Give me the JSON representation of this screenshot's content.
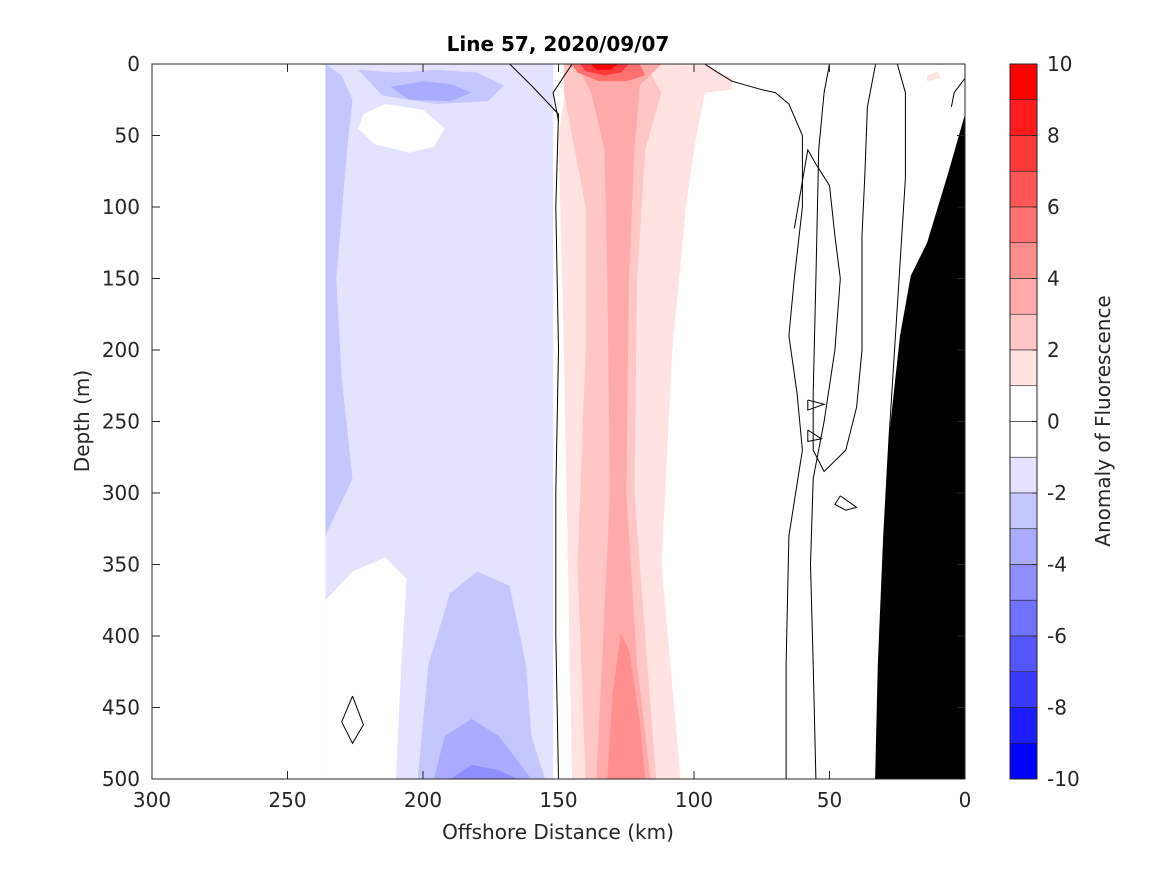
{
  "chart_data": {
    "type": "heatmap",
    "title": "Line 57, 2020/09/07",
    "xlabel": "Offshore Distance (km)",
    "ylabel": "Depth (m)",
    "colorbar_label": "Anomaly of Fluorescence",
    "xlim": [
      300,
      0
    ],
    "ylim": [
      0,
      500
    ],
    "clim": [
      -10,
      10
    ],
    "x_reversed": true,
    "y_reversed": true,
    "x_ticks": [
      300,
      250,
      200,
      150,
      100,
      50,
      0
    ],
    "y_ticks": [
      0,
      50,
      100,
      150,
      200,
      250,
      300,
      350,
      400,
      450,
      500
    ],
    "colorbar_ticks": [
      10,
      8,
      6,
      4,
      2,
      0,
      -2,
      -4,
      -6,
      -8,
      -10
    ],
    "colorbar_levels": [
      {
        "from": 9,
        "to": 10,
        "color": "#ff0000"
      },
      {
        "from": 8,
        "to": 9,
        "color": "#ff1c1c"
      },
      {
        "from": 7,
        "to": 8,
        "color": "#ff3939"
      },
      {
        "from": 6,
        "to": 7,
        "color": "#ff5555"
      },
      {
        "from": 5,
        "to": 6,
        "color": "#ff7171"
      },
      {
        "from": 4,
        "to": 5,
        "color": "#ff8e8e"
      },
      {
        "from": 3,
        "to": 4,
        "color": "#ffaaaa"
      },
      {
        "from": 2,
        "to": 3,
        "color": "#ffc6c6"
      },
      {
        "from": 1,
        "to": 2,
        "color": "#ffe3e3"
      },
      {
        "from": 0,
        "to": 1,
        "color": "#ffffff"
      },
      {
        "from": -1,
        "to": 0,
        "color": "#ffffff"
      },
      {
        "from": -2,
        "to": -1,
        "color": "#e3e3ff"
      },
      {
        "from": -3,
        "to": -2,
        "color": "#c6c6ff"
      },
      {
        "from": -4,
        "to": -3,
        "color": "#aaaaff"
      },
      {
        "from": -5,
        "to": -4,
        "color": "#8e8eff"
      },
      {
        "from": -6,
        "to": -5,
        "color": "#7171ff"
      },
      {
        "from": -7,
        "to": -6,
        "color": "#5555ff"
      },
      {
        "from": -8,
        "to": -7,
        "color": "#3939ff"
      },
      {
        "from": -9,
        "to": -8,
        "color": "#1c1cff"
      },
      {
        "from": -10,
        "to": -9,
        "color": "#0000ff"
      }
    ],
    "regions": [
      {
        "name": "negative-anomaly-light",
        "level": -1.5,
        "color": "#e3e3ff",
        "points": [
          [
            236,
            0
          ],
          [
            152,
            0
          ],
          [
            152,
            500
          ],
          [
            236,
            500
          ]
        ]
      },
      {
        "name": "negative-anomaly-medium-upper",
        "level": -2.5,
        "color": "#c6c6ff",
        "points": [
          [
            236,
            0
          ],
          [
            230,
            8
          ],
          [
            226,
            25
          ],
          [
            228,
            60
          ],
          [
            232,
            150
          ],
          [
            230,
            220
          ],
          [
            226,
            290
          ],
          [
            236,
            330
          ]
        ]
      },
      {
        "name": "negative-anomaly-medium-surface",
        "level": -2.5,
        "color": "#c6c6ff",
        "points": [
          [
            224,
            4
          ],
          [
            210,
            6
          ],
          [
            195,
            4
          ],
          [
            180,
            6
          ],
          [
            170,
            15
          ],
          [
            176,
            26
          ],
          [
            195,
            28
          ],
          [
            215,
            22
          ]
        ]
      },
      {
        "name": "negative-anomaly-strong-surface",
        "level": -3.5,
        "color": "#aaaaff",
        "points": [
          [
            212,
            16
          ],
          [
            200,
            12
          ],
          [
            190,
            14
          ],
          [
            182,
            20
          ],
          [
            190,
            26
          ],
          [
            205,
            25
          ]
        ]
      },
      {
        "name": "negative-anomaly-medium-deep",
        "level": -2.5,
        "color": "#c6c6ff",
        "points": [
          [
            202,
            500
          ],
          [
            198,
            420
          ],
          [
            190,
            370
          ],
          [
            180,
            355
          ],
          [
            168,
            365
          ],
          [
            162,
            420
          ],
          [
            160,
            470
          ],
          [
            155,
            500
          ]
        ]
      },
      {
        "name": "negative-anomaly-strong-deep",
        "level": -3.5,
        "color": "#aaaaff",
        "points": [
          [
            196,
            500
          ],
          [
            192,
            470
          ],
          [
            182,
            458
          ],
          [
            172,
            470
          ],
          [
            164,
            490
          ],
          [
            160,
            500
          ]
        ]
      },
      {
        "name": "negative-anomaly-deepest",
        "level": -4.5,
        "color": "#8e8eff",
        "points": [
          [
            190,
            500
          ],
          [
            182,
            490
          ],
          [
            172,
            494
          ],
          [
            165,
            500
          ]
        ]
      },
      {
        "name": "near-zero-pocket-shallow",
        "level": 0,
        "color": "#ffffff",
        "points": [
          [
            222,
            35
          ],
          [
            214,
            28
          ],
          [
            200,
            32
          ],
          [
            192,
            45
          ],
          [
            196,
            58
          ],
          [
            205,
            62
          ],
          [
            218,
            56
          ],
          [
            224,
            45
          ]
        ]
      },
      {
        "name": "near-zero-pocket-deep",
        "level": 0,
        "color": "#ffffff",
        "points": [
          [
            236,
            375
          ],
          [
            226,
            355
          ],
          [
            214,
            345
          ],
          [
            206,
            360
          ],
          [
            208,
            420
          ],
          [
            210,
            500
          ],
          [
            236,
            500
          ]
        ]
      },
      {
        "name": "positive-anomaly-light",
        "level": 1.5,
        "color": "#ffe3e3",
        "points": [
          [
            146,
            0
          ],
          [
            96,
            0
          ],
          [
            86,
            10
          ],
          [
            86,
            18
          ],
          [
            96,
            20
          ],
          [
            100,
            60
          ],
          [
            103,
            100
          ],
          [
            108,
            200
          ],
          [
            112,
            350
          ],
          [
            105,
            500
          ],
          [
            145,
            500
          ],
          [
            146,
            400
          ],
          [
            148,
            200
          ],
          [
            150,
            50
          ]
        ]
      },
      {
        "name": "positive-anomaly-medium",
        "level": 2.5,
        "color": "#ffc6c6",
        "points": [
          [
            148,
            0
          ],
          [
            118,
            0
          ],
          [
            112,
            20
          ],
          [
            118,
            60
          ],
          [
            121,
            150
          ],
          [
            122,
            300
          ],
          [
            118,
            400
          ],
          [
            114,
            500
          ],
          [
            140,
            500
          ],
          [
            143,
            350
          ],
          [
            140,
            200
          ],
          [
            140,
            100
          ],
          [
            148,
            20
          ]
        ]
      },
      {
        "name": "positive-anomaly-core",
        "level": 3.5,
        "color": "#ffaaaa",
        "points": [
          [
            136,
            500
          ],
          [
            134,
            420
          ],
          [
            131,
            300
          ],
          [
            132,
            150
          ],
          [
            133,
            60
          ],
          [
            138,
            20
          ],
          [
            142,
            5
          ],
          [
            148,
            0
          ],
          [
            112,
            0
          ],
          [
            120,
            15
          ],
          [
            122,
            60
          ],
          [
            124,
            150
          ],
          [
            125,
            300
          ],
          [
            121,
            420
          ],
          [
            116,
            500
          ]
        ]
      },
      {
        "name": "positive-anomaly-deep-core",
        "level": 4.5,
        "color": "#ff8e8e",
        "points": [
          [
            132,
            500
          ],
          [
            130,
            440
          ],
          [
            127,
            398
          ],
          [
            124,
            410
          ],
          [
            120,
            460
          ],
          [
            118,
            500
          ]
        ]
      },
      {
        "name": "positive-anomaly-surface-1",
        "level": 5.5,
        "color": "#ff7171",
        "points": [
          [
            145,
            0
          ],
          [
            120,
            0
          ],
          [
            118,
            8
          ],
          [
            125,
            12
          ],
          [
            135,
            12
          ],
          [
            143,
            6
          ]
        ]
      },
      {
        "name": "positive-anomaly-surface-2",
        "level": 7.5,
        "color": "#ff3939",
        "points": [
          [
            142,
            0
          ],
          [
            124,
            0
          ],
          [
            127,
            6
          ],
          [
            133,
            8
          ],
          [
            140,
            5
          ]
        ]
      },
      {
        "name": "positive-anomaly-surface-3",
        "level": 9.5,
        "color": "#ff0000",
        "points": [
          [
            138,
            0
          ],
          [
            128,
            0
          ],
          [
            131,
            4
          ],
          [
            136,
            4
          ]
        ]
      },
      {
        "name": "positive-anomaly-small-patch",
        "level": 1.5,
        "color": "#ffe3e3",
        "points": [
          [
            14,
            8
          ],
          [
            10,
            5
          ],
          [
            9,
            10
          ],
          [
            14,
            12
          ]
        ]
      },
      {
        "name": "bathymetry",
        "level": null,
        "color": "#000000",
        "points": [
          [
            0,
            35
          ],
          [
            6,
            75
          ],
          [
            14,
            125
          ],
          [
            20,
            148
          ],
          [
            24,
            190
          ],
          [
            28,
            260
          ],
          [
            30,
            330
          ],
          [
            32,
            420
          ],
          [
            33,
            500
          ],
          [
            0,
            500
          ]
        ]
      }
    ],
    "contour_lines": [
      {
        "name": "contour-near-shelf-break",
        "points": [
          [
            168,
            0
          ],
          [
            160,
            15
          ],
          [
            150,
            35
          ],
          [
            151,
            100
          ],
          [
            150,
            200
          ],
          [
            151,
            300
          ],
          [
            151,
            400
          ],
          [
            150,
            500
          ]
        ]
      },
      {
        "name": "contour-offshore-edge",
        "points": [
          [
            145,
            0
          ],
          [
            152,
            20
          ],
          [
            150,
            40
          ]
        ]
      },
      {
        "name": "contour-mid-left",
        "points": [
          [
            96,
            0
          ],
          [
            92,
            5
          ],
          [
            86,
            12
          ],
          [
            75,
            18
          ],
          [
            70,
            20
          ],
          [
            65,
            28
          ],
          [
            60,
            50
          ],
          [
            60,
            100
          ],
          [
            63,
            150
          ],
          [
            65,
            190
          ],
          [
            62,
            230
          ],
          [
            60,
            270
          ],
          [
            65,
            330
          ],
          [
            66,
            420
          ],
          [
            66,
            500
          ]
        ]
      },
      {
        "name": "contour-mid-inner",
        "points": [
          [
            63,
            115
          ],
          [
            58,
            60
          ],
          [
            55,
            70
          ],
          [
            50,
            85
          ],
          [
            48,
            120
          ],
          [
            46,
            150
          ],
          [
            48,
            200
          ],
          [
            52,
            250
          ],
          [
            56,
            290
          ],
          [
            57,
            350
          ],
          [
            56,
            420
          ],
          [
            55,
            500
          ]
        ]
      },
      {
        "name": "contour-mid-right",
        "points": [
          [
            50,
            0
          ],
          [
            52,
            20
          ],
          [
            54,
            60
          ],
          [
            55,
            150
          ],
          [
            56,
            230
          ],
          [
            56,
            270
          ],
          [
            52,
            285
          ],
          [
            44,
            270
          ],
          [
            40,
            240
          ],
          [
            38,
            200
          ],
          [
            38,
            120
          ],
          [
            37,
            80
          ],
          [
            36,
            30
          ],
          [
            33,
            0
          ]
        ]
      },
      {
        "name": "contour-inner-shelf",
        "points": [
          [
            25,
            0
          ],
          [
            22,
            20
          ],
          [
            22,
            80
          ],
          [
            24,
            140
          ],
          [
            28,
            260
          ],
          [
            30,
            330
          ],
          [
            32,
            420
          ],
          [
            33,
            500
          ]
        ]
      },
      {
        "name": "contour-nearshore",
        "points": [
          [
            0,
            10
          ],
          [
            4,
            20
          ],
          [
            5,
            30
          ]
        ]
      },
      {
        "name": "contour-pocket-1",
        "points": [
          [
            58,
            235
          ],
          [
            52,
            238
          ],
          [
            58,
            242
          ],
          [
            58,
            235
          ]
        ]
      },
      {
        "name": "contour-pocket-2",
        "points": [
          [
            58,
            256
          ],
          [
            53,
            262
          ],
          [
            58,
            264
          ],
          [
            58,
            256
          ]
        ]
      },
      {
        "name": "contour-pocket-3",
        "points": [
          [
            46,
            302
          ],
          [
            40,
            310
          ],
          [
            44,
            312
          ],
          [
            48,
            308
          ],
          [
            46,
            302
          ]
        ]
      },
      {
        "name": "contour-pocket-4",
        "points": [
          [
            226,
            442
          ],
          [
            222,
            462
          ],
          [
            226,
            475
          ],
          [
            230,
            460
          ],
          [
            226,
            442
          ]
        ]
      },
      {
        "name": "contour-bathy-notch",
        "points": [
          [
            8,
            100
          ],
          [
            10,
            110
          ],
          [
            6,
            115
          ],
          [
            8,
            100
          ]
        ]
      }
    ]
  }
}
